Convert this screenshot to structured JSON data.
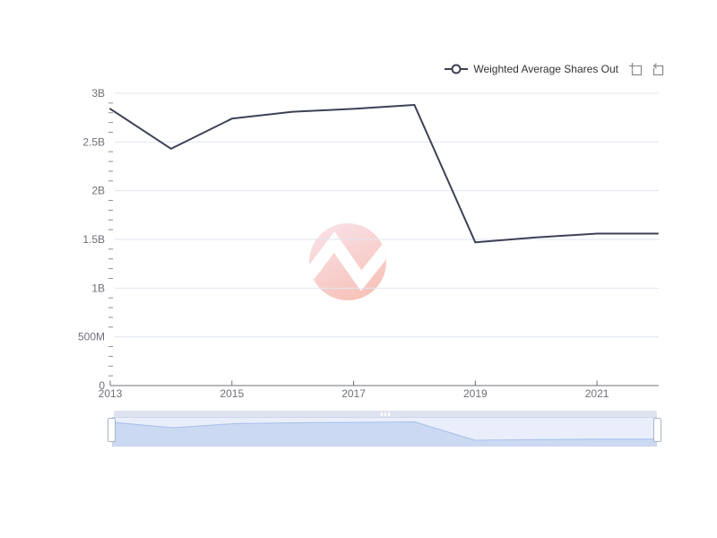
{
  "legend": {
    "label": "Weighted Average Shares Out"
  },
  "toolbox": {
    "icons": [
      {
        "name": "box-zoom-icon"
      },
      {
        "name": "restore-zoom-icon"
      }
    ]
  },
  "watermark": {
    "name": "brand-logo-n-zigzag"
  },
  "colors": {
    "line": "#3d4157",
    "legend_text": "#333333",
    "axis_label": "#6E7079",
    "axis_line": "#6E7079",
    "minor_tick": "#8a8e99",
    "gridline": "#E0E6F1",
    "toolbox_icon": "#8d8d8d",
    "nav_body_bg": "#e9eefa",
    "nav_area_fill": "#ccd9f2",
    "nav_line": "#a6bfe9",
    "nav_topbar": "#dfe3ef",
    "nav_handle_border": "#a9b4cc",
    "watermark_gradient_start": "#f6c3d0",
    "watermark_gradient_end": "#ef8570"
  },
  "chart_data": {
    "type": "line",
    "title": "",
    "legend_position": "top-right",
    "grid": "horizontal-only",
    "has_range_navigator": true,
    "x": [
      2013,
      2014,
      2015,
      2016,
      2017,
      2018,
      2019,
      2020,
      2021,
      2022
    ],
    "x_tick_years": [
      2013,
      2015,
      2017,
      2019,
      2021
    ],
    "x_axis_tick_labels": [
      "2013",
      "2015",
      "2017",
      "2019",
      "2021"
    ],
    "y_tick_values_billions": [
      0,
      0.5,
      1,
      1.5,
      2,
      2.5,
      3
    ],
    "y_axis_tick_labels": [
      "0",
      "500M",
      "1B",
      "1.5B",
      "2B",
      "2.5B",
      "3B"
    ],
    "ylim_billions": [
      0,
      3
    ],
    "series": [
      {
        "name": "Weighted Average Shares Out",
        "unit": "shares",
        "values_billions": [
          2.84,
          2.43,
          2.74,
          2.81,
          2.84,
          2.88,
          1.47,
          1.52,
          1.56,
          1.56
        ]
      }
    ]
  }
}
